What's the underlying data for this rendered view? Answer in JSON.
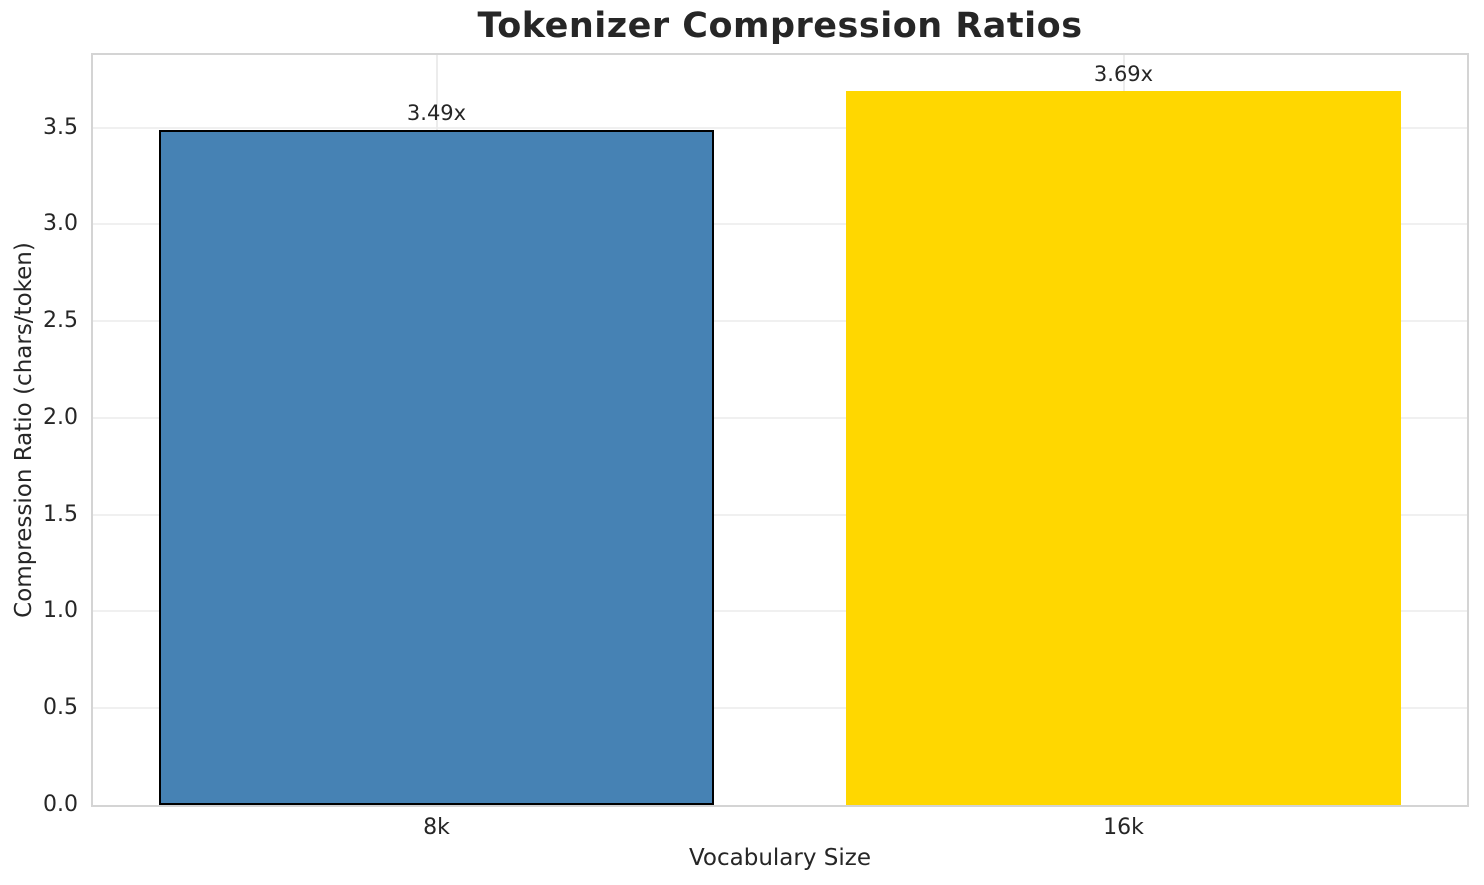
{
  "chart_data": {
    "type": "bar",
    "title": "Tokenizer Compression Ratios",
    "xlabel": "Vocabulary Size",
    "ylabel": "Compression Ratio (chars/token)",
    "categories": [
      "8k",
      "16k"
    ],
    "values": [
      3.49,
      3.69
    ],
    "bar_labels": [
      "3.49x",
      "3.69x"
    ],
    "bar_colors": [
      "#4682b4",
      "#ffd700"
    ],
    "bar_edge_colors": [
      "#000000",
      "none"
    ],
    "ytick_labels": [
      "0.0",
      "0.5",
      "1.0",
      "1.5",
      "2.0",
      "2.5",
      "3.0",
      "3.5"
    ],
    "ytick_values": [
      0,
      0.5,
      1,
      1.5,
      2,
      2.5,
      3,
      3.5
    ],
    "ylim": [
      0,
      3.875
    ],
    "grid": true,
    "legend_position": "none",
    "colors": {
      "background": "#ffffff",
      "text": "#262626",
      "grid_horizontal": "#f0f0f0",
      "grid_vertical": "#ececec",
      "spine": "#d4d4d4"
    }
  }
}
